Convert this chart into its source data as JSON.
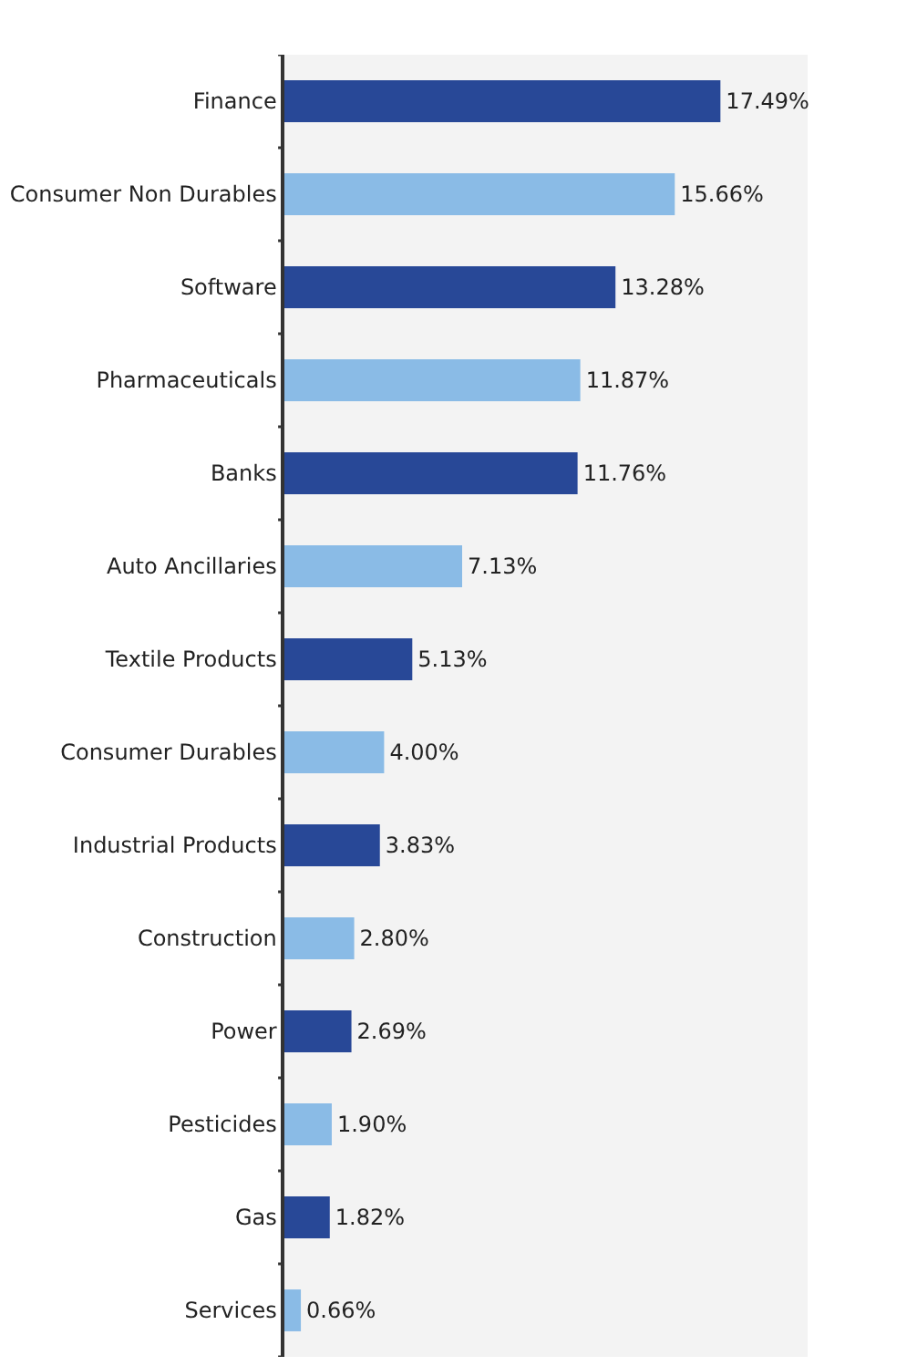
{
  "chart_data": {
    "type": "bar",
    "orientation": "horizontal",
    "categories": [
      "Finance",
      "Consumer Non Durables",
      "Software",
      "Pharmaceuticals",
      "Banks",
      "Auto Ancillaries",
      "Textile Products",
      "Consumer Durables",
      "Industrial Products",
      "Construction",
      "Power",
      "Pesticides",
      "Gas",
      "Services"
    ],
    "values": [
      17.49,
      15.66,
      13.28,
      11.87,
      11.76,
      7.13,
      5.13,
      4.0,
      3.83,
      2.8,
      2.69,
      1.9,
      1.82,
      0.66
    ],
    "value_labels": [
      "17.49%",
      "15.66%",
      "13.28%",
      "11.87%",
      "11.76%",
      "7.13%",
      "5.13%",
      "4.00%",
      "3.83%",
      "2.80%",
      "2.69%",
      "1.90%",
      "1.82%",
      "0.66%"
    ],
    "colors": [
      "#284897",
      "#8abbe6",
      "#284897",
      "#8abbe6",
      "#284897",
      "#8abbe6",
      "#284897",
      "#8abbe6",
      "#284897",
      "#8abbe6",
      "#284897",
      "#8abbe6",
      "#284897",
      "#8abbe6"
    ],
    "grid": false,
    "legend": false
  }
}
